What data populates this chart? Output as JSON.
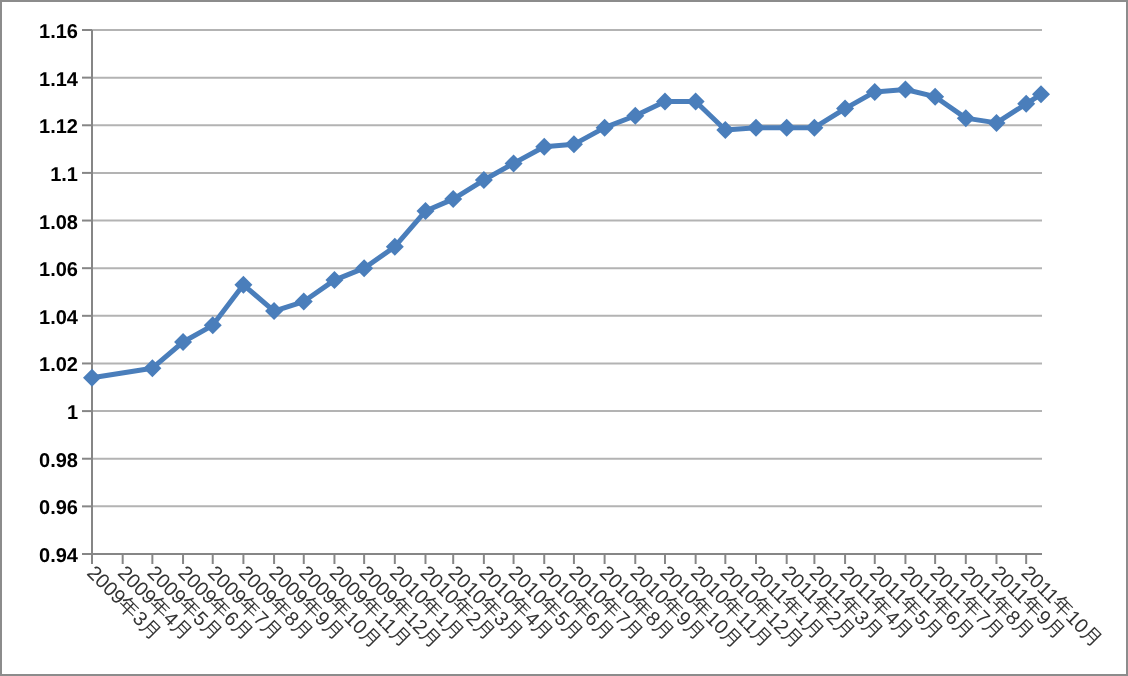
{
  "chart_data": {
    "type": "line",
    "x": [
      "2009-03-01",
      "2009-05-01",
      "2009-06-01",
      "2009-07-01",
      "2009-08-01",
      "2009-09-01",
      "2009-10-01",
      "2009-11-01",
      "2009-12-01",
      "2010-01-01",
      "2010-02-01",
      "2010-03-01",
      "2010-04-01",
      "2010-05-01",
      "2010-06-01",
      "2010-07-01",
      "2010-08-01",
      "2010-09-01",
      "2010-10-01",
      "2010-11-01",
      "2010-12-01",
      "2011-01-01",
      "2011-02-01",
      "2011-03-01",
      "2011-04-01",
      "2011-05-01",
      "2011-06-01",
      "2011-07-01",
      "2011-08-01",
      "2011-09-01",
      "2011-10-01",
      "2011-10-16"
    ],
    "series": [
      {
        "color": "#4a7ebb",
        "values": [
          1.014,
          1.018,
          1.029,
          1.036,
          1.053,
          1.042,
          1.046,
          1.055,
          1.06,
          1.069,
          1.084,
          1.089,
          1.097,
          1.104,
          1.111,
          1.112,
          1.119,
          1.124,
          1.13,
          1.13,
          1.118,
          1.119,
          1.119,
          1.119,
          1.127,
          1.134,
          1.135,
          1.132,
          1.123,
          1.121,
          1.129,
          1.133
        ]
      }
    ],
    "xlim": [
      "2009-03-01",
      "2011-10-17"
    ],
    "xticks": [
      {
        "value": "2009-03-01",
        "label": "2009年3月"
      },
      {
        "value": "2009-04-01",
        "label": "2009年4月"
      },
      {
        "value": "2009-05-01",
        "label": "2009年5月"
      },
      {
        "value": "2009-06-01",
        "label": "2009年6月"
      },
      {
        "value": "2009-07-01",
        "label": "2009年7月"
      },
      {
        "value": "2009-08-01",
        "label": "2009年8月"
      },
      {
        "value": "2009-09-01",
        "label": "2009年9月"
      },
      {
        "value": "2009-10-01",
        "label": "2009年10月"
      },
      {
        "value": "2009-11-01",
        "label": "2009年11月"
      },
      {
        "value": "2009-12-01",
        "label": "2009年12月"
      },
      {
        "value": "2010-01-01",
        "label": "2010年1月"
      },
      {
        "value": "2010-02-01",
        "label": "2010年2月"
      },
      {
        "value": "2010-03-01",
        "label": "2010年3月"
      },
      {
        "value": "2010-04-01",
        "label": "2010年4月"
      },
      {
        "value": "2010-05-01",
        "label": "2010年5月"
      },
      {
        "value": "2010-06-01",
        "label": "2010年6月"
      },
      {
        "value": "2010-07-01",
        "label": "2010年7月"
      },
      {
        "value": "2010-08-01",
        "label": "2010年8月"
      },
      {
        "value": "2010-09-01",
        "label": "2010年9月"
      },
      {
        "value": "2010-10-01",
        "label": "2010年10月"
      },
      {
        "value": "2010-11-01",
        "label": "2010年11月"
      },
      {
        "value": "2010-12-01",
        "label": "2010年12月"
      },
      {
        "value": "2011-01-01",
        "label": "2011年1月"
      },
      {
        "value": "2011-02-01",
        "label": "2011年2月"
      },
      {
        "value": "2011-03-01",
        "label": "2011年3月"
      },
      {
        "value": "2011-04-01",
        "label": "2011年4月"
      },
      {
        "value": "2011-05-01",
        "label": "2011年5月"
      },
      {
        "value": "2011-06-01",
        "label": "2011年6月"
      },
      {
        "value": "2011-07-01",
        "label": "2011年7月"
      },
      {
        "value": "2011-08-01",
        "label": "2011年8月"
      },
      {
        "value": "2011-09-01",
        "label": "2011年9月"
      },
      {
        "value": "2011-10-01",
        "label": "2011年10月"
      }
    ],
    "ylim": [
      0.94,
      1.16
    ],
    "yticks": [
      0.94,
      0.96,
      0.98,
      1,
      1.02,
      1.04,
      1.06,
      1.08,
      1.1,
      1.12,
      1.14,
      1.16
    ],
    "grid": "y",
    "marker": "diamond",
    "line_style": "solid"
  }
}
